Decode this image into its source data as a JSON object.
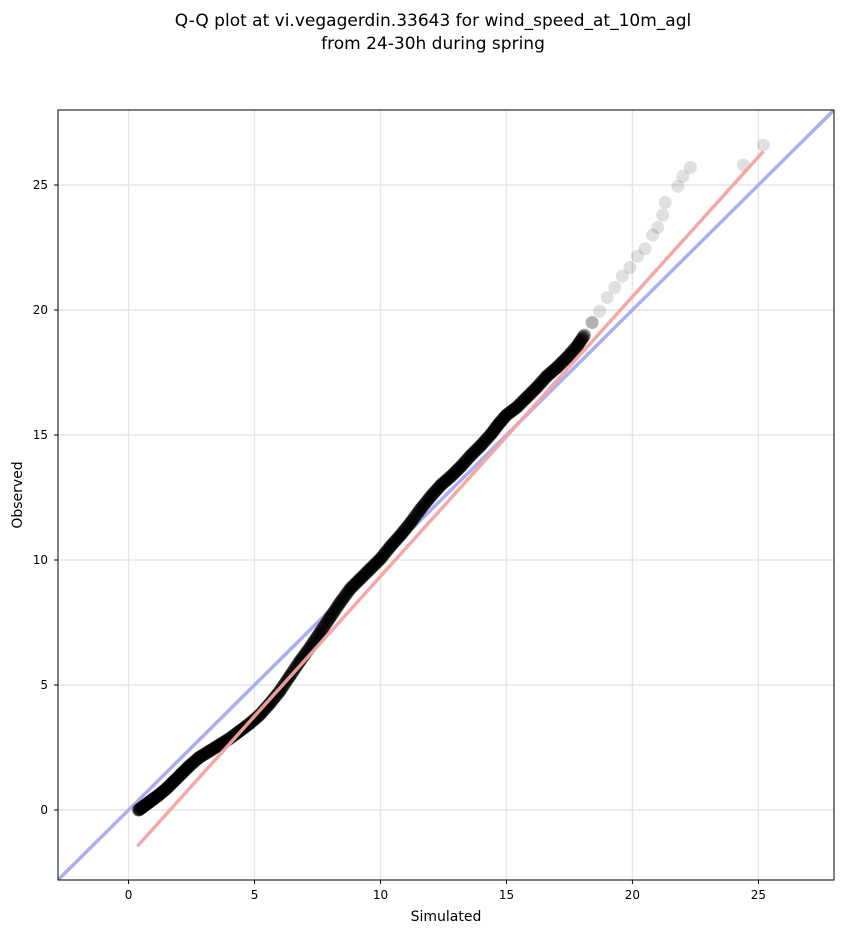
{
  "chart_data": {
    "type": "scatter",
    "title_lines": [
      "Q-Q plot at vi.vegagerdin.33643 for wind_speed_at_10m_agl",
      "from 24-30h during spring"
    ],
    "xlabel": "Simulated",
    "ylabel": "Observed",
    "xlim": [
      -2.8,
      28.0
    ],
    "ylim": [
      -2.8,
      28.0
    ],
    "xticks": [
      0,
      5,
      10,
      15,
      20,
      25
    ],
    "yticks": [
      0,
      5,
      10,
      15,
      20,
      25
    ],
    "xtick_labels": [
      "0",
      "5",
      "10",
      "15",
      "20",
      "25"
    ],
    "ytick_labels": [
      "0",
      "5",
      "10",
      "15",
      "20",
      "25"
    ],
    "grid": true,
    "legend": "none",
    "series": [
      {
        "kind": "quantile-points",
        "color": "#000000",
        "x": [
          0.4,
          0.6,
          0.8,
          1.0,
          1.2,
          1.5,
          1.8,
          2.1,
          2.4,
          2.8,
          3.2,
          3.6,
          4.0,
          4.4,
          4.8,
          5.2,
          5.6,
          6.0,
          6.4,
          6.8,
          7.2,
          7.6,
          8.0,
          8.4,
          8.8,
          9.2,
          9.6,
          10.0,
          10.4,
          10.8,
          11.2,
          11.6,
          12.0,
          12.4,
          12.8,
          13.2,
          13.6,
          14.0,
          14.4,
          14.7,
          15.0,
          15.4,
          15.8,
          16.2,
          16.6,
          17.0,
          17.4,
          17.8,
          18.1,
          18.4,
          18.7,
          19.0,
          19.3,
          19.6,
          19.9,
          20.2,
          20.5,
          20.8,
          21.0,
          21.2,
          21.3,
          21.8,
          22.0,
          22.3,
          24.4,
          25.2
        ],
        "y": [
          0.0,
          0.15,
          0.3,
          0.45,
          0.6,
          0.85,
          1.15,
          1.45,
          1.75,
          2.1,
          2.35,
          2.6,
          2.85,
          3.15,
          3.45,
          3.8,
          4.25,
          4.75,
          5.35,
          5.95,
          6.5,
          7.1,
          7.7,
          8.3,
          8.85,
          9.25,
          9.65,
          10.05,
          10.55,
          11.0,
          11.5,
          12.05,
          12.55,
          13.0,
          13.35,
          13.75,
          14.2,
          14.6,
          15.05,
          15.45,
          15.8,
          16.1,
          16.5,
          16.9,
          17.35,
          17.7,
          18.1,
          18.55,
          19.0,
          19.5,
          19.95,
          20.5,
          20.9,
          21.35,
          21.7,
          22.15,
          22.45,
          23.0,
          23.3,
          23.8,
          24.3,
          24.95,
          25.35,
          25.7,
          25.8,
          26.6
        ]
      },
      {
        "kind": "fit-line",
        "color": "#f4a3a3",
        "x": [
          0.35,
          25.2
        ],
        "y": [
          -1.45,
          26.35
        ]
      },
      {
        "kind": "identity-line",
        "color": "#a9aff0",
        "x": [
          -2.8,
          28.0
        ],
        "y": [
          -2.8,
          28.0
        ]
      }
    ]
  }
}
